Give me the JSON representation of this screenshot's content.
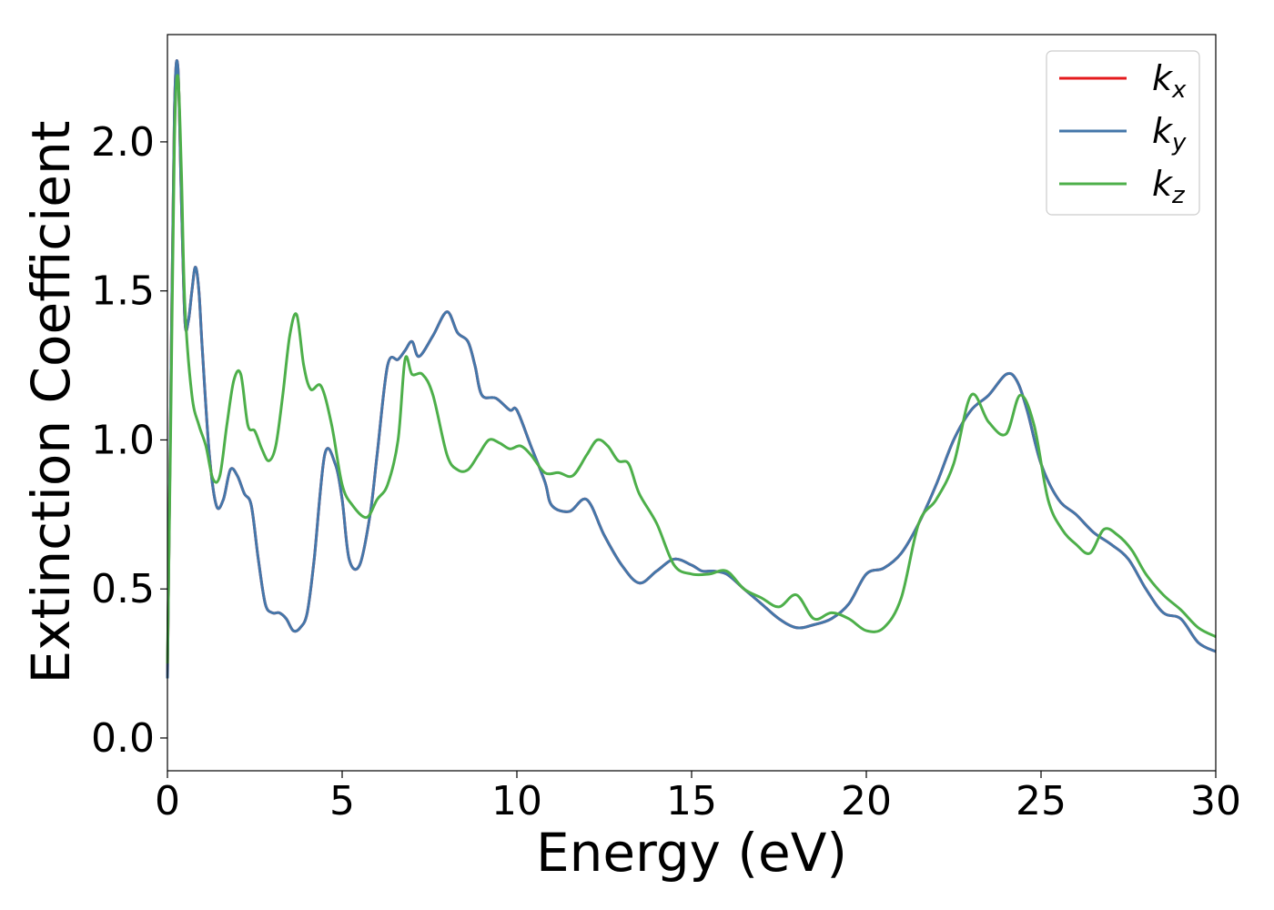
{
  "chart_data": {
    "type": "line",
    "title": "",
    "xlabel": "Energy (eV)",
    "ylabel": "Extinction Coefficient",
    "xlim": [
      0,
      30
    ],
    "ylim": [
      -0.11,
      2.36
    ],
    "xticks": [
      0,
      5,
      10,
      15,
      20,
      25,
      30
    ],
    "xtick_labels": [
      "0",
      "5",
      "10",
      "15",
      "20",
      "25",
      "30"
    ],
    "yticks": [
      0.0,
      0.5,
      1.0,
      1.5,
      2.0
    ],
    "ytick_labels": [
      "0.0",
      "0.5",
      "1.0",
      "1.5",
      "2.0"
    ],
    "grid": false,
    "legend_position": "top-right",
    "series": [
      {
        "name": "k_x",
        "label_main": "k",
        "label_sub": "x",
        "color": "#e41a1c",
        "x": [
          0,
          0.1,
          0.2,
          0.3,
          0.4,
          0.5,
          0.6,
          0.7,
          0.8,
          0.9,
          1.0,
          1.2,
          1.4,
          1.6,
          1.8,
          2.0,
          2.2,
          2.4,
          2.6,
          2.8,
          3.0,
          3.2,
          3.4,
          3.6,
          3.8,
          4.0,
          4.2,
          4.5,
          4.8,
          5.0,
          5.2,
          5.5,
          5.8,
          6.0,
          6.3,
          6.6,
          6.8,
          7.0,
          7.2,
          7.6,
          8.0,
          8.3,
          8.6,
          8.8,
          9.0,
          9.4,
          9.8,
          10.0,
          10.4,
          10.8,
          11.0,
          11.5,
          12.0,
          12.5,
          13.0,
          13.5,
          14.0,
          14.5,
          15.0,
          15.3,
          15.6,
          16.0,
          16.5,
          17.0,
          17.5,
          18.0,
          18.5,
          19.0,
          19.5,
          20.0,
          20.5,
          21.0,
          21.5,
          22.0,
          22.5,
          23.0,
          23.5,
          24.0,
          24.3,
          24.6,
          25.0,
          25.5,
          26.0,
          26.5,
          27.0,
          27.5,
          28.0,
          28.5,
          29.0,
          29.5,
          30.0
        ],
        "y": [
          0.2,
          1.2,
          2.1,
          2.25,
          1.8,
          1.4,
          1.4,
          1.5,
          1.58,
          1.5,
          1.3,
          0.95,
          0.78,
          0.8,
          0.9,
          0.88,
          0.82,
          0.78,
          0.6,
          0.45,
          0.42,
          0.42,
          0.4,
          0.36,
          0.37,
          0.42,
          0.6,
          0.95,
          0.92,
          0.8,
          0.6,
          0.58,
          0.75,
          0.95,
          1.25,
          1.27,
          1.3,
          1.33,
          1.28,
          1.35,
          1.43,
          1.36,
          1.33,
          1.25,
          1.15,
          1.14,
          1.1,
          1.1,
          0.98,
          0.86,
          0.78,
          0.76,
          0.8,
          0.68,
          0.58,
          0.52,
          0.56,
          0.6,
          0.58,
          0.56,
          0.56,
          0.55,
          0.5,
          0.45,
          0.4,
          0.37,
          0.38,
          0.4,
          0.45,
          0.55,
          0.57,
          0.62,
          0.72,
          0.85,
          1.0,
          1.1,
          1.15,
          1.22,
          1.2,
          1.1,
          0.92,
          0.8,
          0.75,
          0.69,
          0.65,
          0.6,
          0.5,
          0.42,
          0.4,
          0.32,
          0.29
        ]
      },
      {
        "name": "k_y",
        "label_main": "k",
        "label_sub": "y",
        "color": "#4477aa",
        "x": [
          0,
          0.1,
          0.2,
          0.3,
          0.4,
          0.5,
          0.6,
          0.7,
          0.8,
          0.9,
          1.0,
          1.2,
          1.4,
          1.6,
          1.8,
          2.0,
          2.2,
          2.4,
          2.6,
          2.8,
          3.0,
          3.2,
          3.4,
          3.6,
          3.8,
          4.0,
          4.2,
          4.5,
          4.8,
          5.0,
          5.2,
          5.5,
          5.8,
          6.0,
          6.3,
          6.6,
          6.8,
          7.0,
          7.2,
          7.6,
          8.0,
          8.3,
          8.6,
          8.8,
          9.0,
          9.4,
          9.8,
          10.0,
          10.4,
          10.8,
          11.0,
          11.5,
          12.0,
          12.5,
          13.0,
          13.5,
          14.0,
          14.5,
          15.0,
          15.3,
          15.6,
          16.0,
          16.5,
          17.0,
          17.5,
          18.0,
          18.5,
          19.0,
          19.5,
          20.0,
          20.5,
          21.0,
          21.5,
          22.0,
          22.5,
          23.0,
          23.5,
          24.0,
          24.3,
          24.6,
          25.0,
          25.5,
          26.0,
          26.5,
          27.0,
          27.5,
          28.0,
          28.5,
          29.0,
          29.5,
          30.0
        ],
        "y": [
          0.2,
          1.2,
          2.1,
          2.25,
          1.8,
          1.4,
          1.4,
          1.5,
          1.58,
          1.5,
          1.3,
          0.95,
          0.78,
          0.8,
          0.9,
          0.88,
          0.82,
          0.78,
          0.6,
          0.45,
          0.42,
          0.42,
          0.4,
          0.36,
          0.37,
          0.42,
          0.6,
          0.95,
          0.92,
          0.8,
          0.6,
          0.58,
          0.75,
          0.95,
          1.25,
          1.27,
          1.3,
          1.33,
          1.28,
          1.35,
          1.43,
          1.36,
          1.33,
          1.25,
          1.15,
          1.14,
          1.1,
          1.1,
          0.98,
          0.86,
          0.78,
          0.76,
          0.8,
          0.68,
          0.58,
          0.52,
          0.56,
          0.6,
          0.58,
          0.56,
          0.56,
          0.55,
          0.5,
          0.45,
          0.4,
          0.37,
          0.38,
          0.4,
          0.45,
          0.55,
          0.57,
          0.62,
          0.72,
          0.85,
          1.0,
          1.1,
          1.15,
          1.22,
          1.2,
          1.1,
          0.92,
          0.8,
          0.75,
          0.69,
          0.65,
          0.6,
          0.5,
          0.42,
          0.4,
          0.32,
          0.29
        ]
      },
      {
        "name": "k_z",
        "label_main": "k",
        "label_sub": "z",
        "color": "#4daf4a",
        "x": [
          0,
          0.1,
          0.2,
          0.3,
          0.4,
          0.5,
          0.7,
          0.9,
          1.1,
          1.3,
          1.5,
          1.7,
          1.9,
          2.1,
          2.3,
          2.5,
          2.7,
          2.9,
          3.1,
          3.3,
          3.5,
          3.7,
          3.9,
          4.1,
          4.4,
          4.7,
          5.0,
          5.3,
          5.7,
          6.0,
          6.3,
          6.6,
          6.8,
          7.0,
          7.3,
          7.6,
          8.0,
          8.3,
          8.6,
          8.9,
          9.2,
          9.5,
          9.8,
          10.1,
          10.4,
          10.8,
          11.2,
          11.6,
          12.0,
          12.3,
          12.6,
          12.9,
          13.2,
          13.5,
          14.0,
          14.5,
          15.0,
          15.5,
          16.0,
          16.5,
          17.0,
          17.5,
          18.0,
          18.5,
          19.0,
          19.5,
          20.0,
          20.5,
          21.0,
          21.5,
          22.0,
          22.5,
          23.0,
          23.5,
          24.0,
          24.4,
          24.8,
          25.2,
          25.6,
          26.0,
          26.4,
          26.8,
          27.2,
          27.6,
          28.0,
          28.5,
          29.0,
          29.5,
          30.0
        ],
        "y": [
          0.25,
          1.1,
          2.0,
          2.22,
          1.9,
          1.45,
          1.15,
          1.05,
          0.98,
          0.87,
          0.88,
          1.05,
          1.2,
          1.22,
          1.05,
          1.03,
          0.97,
          0.93,
          0.98,
          1.15,
          1.35,
          1.42,
          1.25,
          1.17,
          1.18,
          1.05,
          0.85,
          0.78,
          0.74,
          0.8,
          0.85,
          1.0,
          1.27,
          1.22,
          1.22,
          1.15,
          0.95,
          0.9,
          0.9,
          0.95,
          1.0,
          0.99,
          0.97,
          0.98,
          0.95,
          0.89,
          0.89,
          0.88,
          0.95,
          1.0,
          0.98,
          0.93,
          0.92,
          0.82,
          0.72,
          0.58,
          0.55,
          0.55,
          0.56,
          0.5,
          0.47,
          0.44,
          0.48,
          0.4,
          0.42,
          0.4,
          0.36,
          0.37,
          0.47,
          0.72,
          0.8,
          0.92,
          1.15,
          1.06,
          1.02,
          1.15,
          1.05,
          0.8,
          0.7,
          0.65,
          0.62,
          0.7,
          0.68,
          0.63,
          0.55,
          0.48,
          0.43,
          0.37,
          0.34
        ]
      }
    ]
  }
}
